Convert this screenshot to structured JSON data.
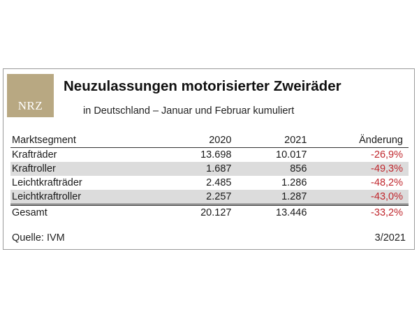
{
  "logo": {
    "text": "NRZ",
    "color": "#b8a882"
  },
  "title": "Neuzulassungen motorisierter Zweiräder",
  "subtitle": "in Deutschland – Januar und Februar kumuliert",
  "table": {
    "headers": [
      "Marktsegment",
      "2020",
      "2021",
      "Änderung"
    ],
    "rows": [
      {
        "segment": "Krafträder",
        "y2020": "13.698",
        "y2021": "10.017",
        "change": "-26,9%"
      },
      {
        "segment": "Kraftroller",
        "y2020": "1.687",
        "y2021": "856",
        "change": "-49,3%"
      },
      {
        "segment": "Leichtkrafträder",
        "y2020": "2.485",
        "y2021": "1.286",
        "change": "-48,2%"
      },
      {
        "segment": "Leichtkraftroller",
        "y2020": "2.257",
        "y2021": "1.287",
        "change": "-43,0%"
      }
    ],
    "total": {
      "segment": "Gesamt",
      "y2020": "20.127",
      "y2021": "13.446",
      "change": "-33,2%"
    },
    "negative_color": "#c0272d",
    "shade_color": "#dcdcdc"
  },
  "footer": {
    "source": "Quelle: IVM",
    "edition": "3/2021"
  }
}
